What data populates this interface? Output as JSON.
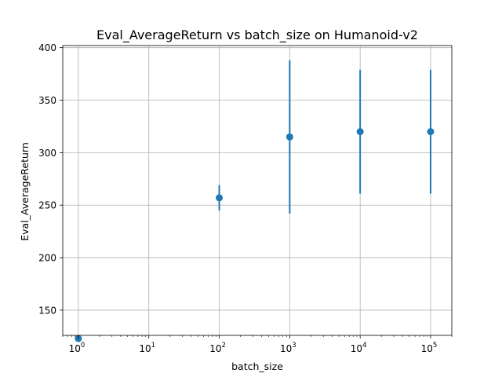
{
  "chart_data": {
    "type": "scatter",
    "title": "Eval_AverageReturn vs batch_size on Humanoid-v2",
    "xlabel": "batch_size",
    "ylabel": "Eval_AverageReturn",
    "xscale": "log",
    "xlim": [
      0.6,
      200000
    ],
    "ylim": [
      126,
      402
    ],
    "grid": true,
    "error_bars": true,
    "x_ticks": [
      {
        "value": 1,
        "base": "10",
        "exp": "0"
      },
      {
        "value": 10,
        "base": "10",
        "exp": "1"
      },
      {
        "value": 100,
        "base": "10",
        "exp": "2"
      },
      {
        "value": 1000,
        "base": "10",
        "exp": "3"
      },
      {
        "value": 10000,
        "base": "10",
        "exp": "4"
      },
      {
        "value": 100000,
        "base": "10",
        "exp": "5"
      }
    ],
    "y_ticks": [
      {
        "value": 150,
        "label": "150"
      },
      {
        "value": 200,
        "label": "200"
      },
      {
        "value": 250,
        "label": "250"
      },
      {
        "value": 300,
        "label": "300"
      },
      {
        "value": 350,
        "label": "350"
      },
      {
        "value": 400,
        "label": "400"
      }
    ],
    "series": [
      {
        "color": "#1f77b4",
        "points": [
          {
            "x": 1,
            "y": 123,
            "err": 0
          },
          {
            "x": 100,
            "y": 257,
            "err": 12
          },
          {
            "x": 1000,
            "y": 315,
            "err": 73
          },
          {
            "x": 10000,
            "y": 320,
            "err": 59
          },
          {
            "x": 100000,
            "y": 320,
            "err": 59
          }
        ]
      }
    ]
  }
}
